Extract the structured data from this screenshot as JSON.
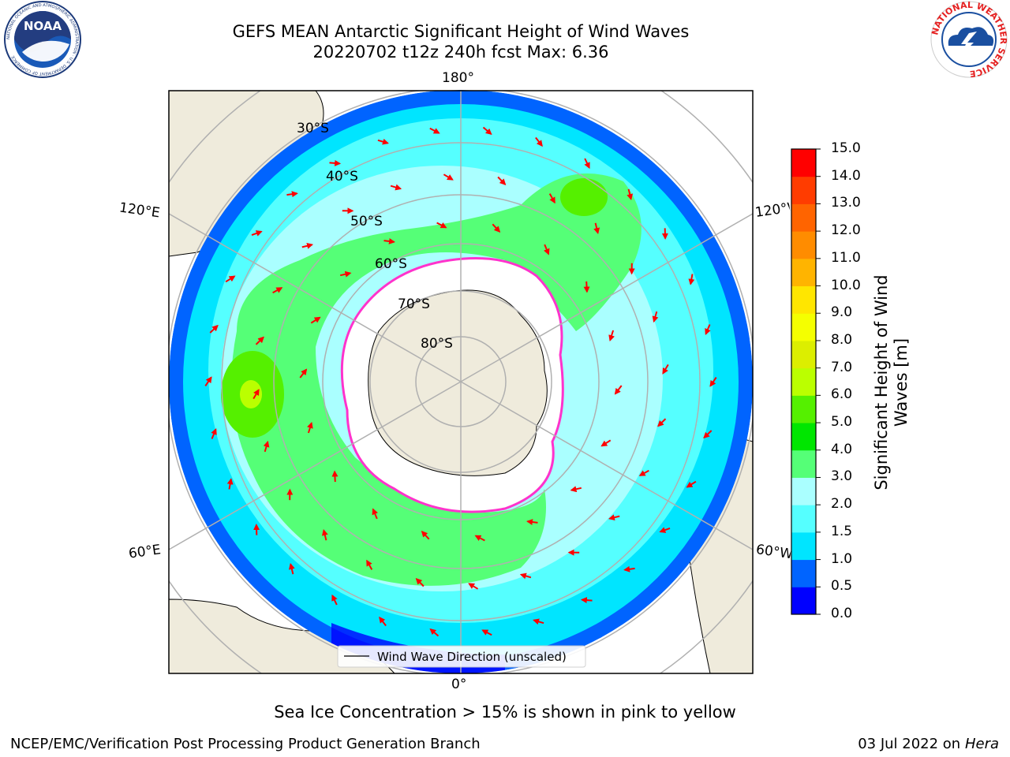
{
  "title": {
    "line1": "GEFS MEAN Antarctic Significant Height of Wind Waves",
    "line2": "20220702 t12z 240h fcst   Max: 6.36"
  },
  "logos": {
    "left": {
      "icon": "noaa-logo",
      "text": "NOAA",
      "ring_text": "NATIONAL OCEANIC AND ATMOSPHERIC ADMINISTRATION · U.S. DEPARTMENT OF COMMERCE"
    },
    "right": {
      "icon": "nws-logo",
      "ring_text": "NATIONAL WEATHER SERVICE"
    }
  },
  "map": {
    "projection": "south-polar-stereographic",
    "longitude_labels": {
      "top": "180°",
      "bottom": "0°",
      "upper_left": "120°E",
      "upper_right": "120°W",
      "lower_left": "60°E",
      "lower_right": "60°W"
    },
    "latitude_labels": [
      "30°S",
      "40°S",
      "50°S",
      "60°S",
      "70°S",
      "80°S"
    ],
    "legend": {
      "label": "Wind Wave Direction (unscaled)"
    },
    "colors": {
      "land": "#efebdc",
      "ice": "#ffffff",
      "grid": "#b0b0b0",
      "arrow": "#ff0000",
      "ice_edge": "#ff33cc"
    }
  },
  "colorbar": {
    "label": "Significant Height of Wind Waves [m]",
    "ticks": [
      "0.0",
      "0.5",
      "1.0",
      "1.5",
      "2.0",
      "3.0",
      "4.0",
      "5.0",
      "6.0",
      "7.0",
      "8.0",
      "9.0",
      "10.0",
      "11.0",
      "12.0",
      "13.0",
      "14.0",
      "15.0"
    ],
    "colors": [
      "#0000ff",
      "#0064ff",
      "#00e5ff",
      "#55ffff",
      "#aaffff",
      "#55ff77",
      "#00e600",
      "#55f000",
      "#bbff00",
      "#dcee00",
      "#f5ff00",
      "#ffe600",
      "#ffb400",
      "#ff8c00",
      "#ff6400",
      "#ff3c00",
      "#ff0000"
    ]
  },
  "note": "Sea Ice Concentration > 15% is shown in pink to yellow",
  "footer": {
    "left": "NCEP/EMC/Verification Post Processing Product Generation Branch",
    "right_prefix": "03 Jul 2022 on ",
    "right_host": "Hera"
  }
}
